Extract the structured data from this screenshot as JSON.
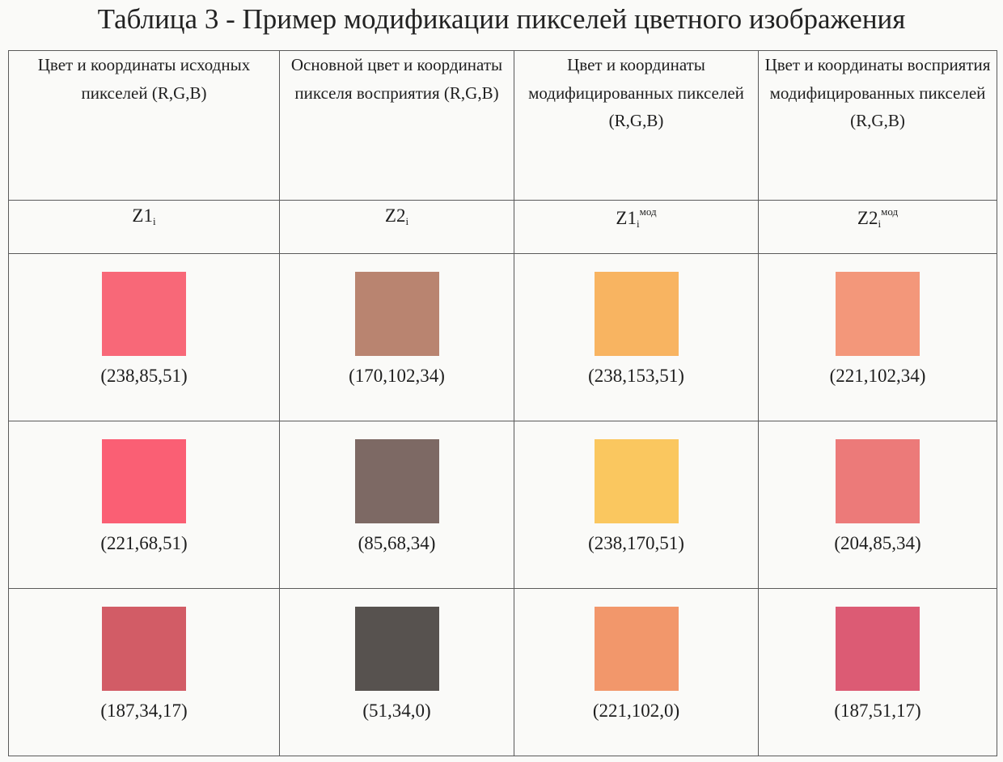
{
  "title": "Таблица 3 - Пример модификации пикселей цветного изображения",
  "headers": [
    "Цвет и координаты исходных пикселей (R,G,B)",
    "Основной цвет и координаты пикселя восприятия (R,G,B)",
    "Цвет и координаты модифицированных пикселей (R,G,B)",
    "Цвет и координаты восприятия модифицированных пикселей (R,G,B)"
  ],
  "symbols": [
    {
      "base": "Z1",
      "sub": "i",
      "sup": ""
    },
    {
      "base": "Z2",
      "sub": "i",
      "sup": ""
    },
    {
      "base": "Z1",
      "sub": "i",
      "sup": "мод"
    },
    {
      "base": "Z2",
      "sub": "i",
      "sup": "мод"
    }
  ],
  "rows": [
    [
      {
        "rgb": "(238,85,51)",
        "color": "#f86878"
      },
      {
        "rgb": "(170,102,34)",
        "color": "#b98470"
      },
      {
        "rgb": "(238,153,51)",
        "color": "#f8b461"
      },
      {
        "rgb": "(221,102,34)",
        "color": "#f3977a"
      }
    ],
    [
      {
        "rgb": "(221,68,51)",
        "color": "#fa5f74"
      },
      {
        "rgb": "(85,68,34)",
        "color": "#7d6964"
      },
      {
        "rgb": "(238,170,51)",
        "color": "#fac75f"
      },
      {
        "rgb": "(204,85,34)",
        "color": "#ec7a79"
      }
    ],
    [
      {
        "rgb": "(187,34,17)",
        "color": "#d25c66"
      },
      {
        "rgb": "(51,34,0)",
        "color": "#57524f"
      },
      {
        "rgb": "(221,102,0)",
        "color": "#f2976b"
      },
      {
        "rgb": "(187,51,17)",
        "color": "#dc5b74"
      }
    ]
  ]
}
